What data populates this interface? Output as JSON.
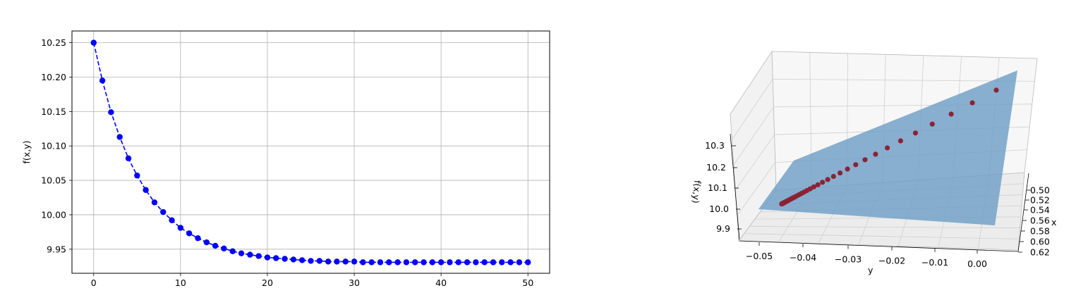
{
  "chart_data": [
    {
      "type": "line",
      "xlabel": "",
      "ylabel": "f(x,y)",
      "xlim": [
        -2.5,
        52.5
      ],
      "ylim": [
        9.915,
        10.267
      ],
      "grid": true,
      "line_style": "dashed",
      "marker": "circle",
      "color": "#0000ff",
      "x": [
        0,
        1,
        2,
        3,
        4,
        5,
        6,
        7,
        8,
        9,
        10,
        11,
        12,
        13,
        14,
        15,
        16,
        17,
        18,
        19,
        20,
        21,
        22,
        23,
        24,
        25,
        26,
        27,
        28,
        29,
        30,
        31,
        32,
        33,
        34,
        35,
        36,
        37,
        38,
        39,
        40,
        41,
        42,
        43,
        44,
        45,
        46,
        47,
        48,
        49,
        50
      ],
      "y": [
        10.25,
        10.195,
        10.149,
        10.113,
        10.082,
        10.057,
        10.036,
        10.018,
        10.004,
        9.992,
        9.981,
        9.973,
        9.966,
        9.96,
        9.955,
        9.951,
        9.947,
        9.944,
        9.942,
        9.94,
        9.938,
        9.937,
        9.936,
        9.935,
        9.934,
        9.933,
        9.933,
        9.932,
        9.932,
        9.932,
        9.932,
        9.931,
        9.931,
        9.931,
        9.931,
        9.931,
        9.931,
        9.931,
        9.931,
        9.931,
        9.931,
        9.931,
        9.931,
        9.931,
        9.931,
        9.931,
        9.931,
        9.931,
        9.931,
        9.931,
        9.931
      ],
      "xticks": [
        "0",
        "10",
        "20",
        "30",
        "40",
        "50"
      ],
      "yticks": [
        "9.95",
        "10.00",
        "10.05",
        "10.10",
        "10.15",
        "10.20",
        "10.25"
      ]
    },
    {
      "type": "scatter",
      "title": "",
      "xlabel": "x",
      "ylabel": "y",
      "zlabel": "f(x,y)",
      "surface_color": "#6f9fc6",
      "point_color": "#8b2335",
      "xticks": [
        "0.50",
        "0.52",
        "0.54",
        "0.56",
        "0.58",
        "0.60",
        "0.62"
      ],
      "yticks": [
        "-0.05",
        "-0.04",
        "-0.03",
        "-0.02",
        "-0.01",
        "0.00"
      ],
      "zticks": [
        "10.3",
        "10.2",
        "10.1",
        "10.0",
        "9.9"
      ],
      "points_count": 51
    }
  ]
}
